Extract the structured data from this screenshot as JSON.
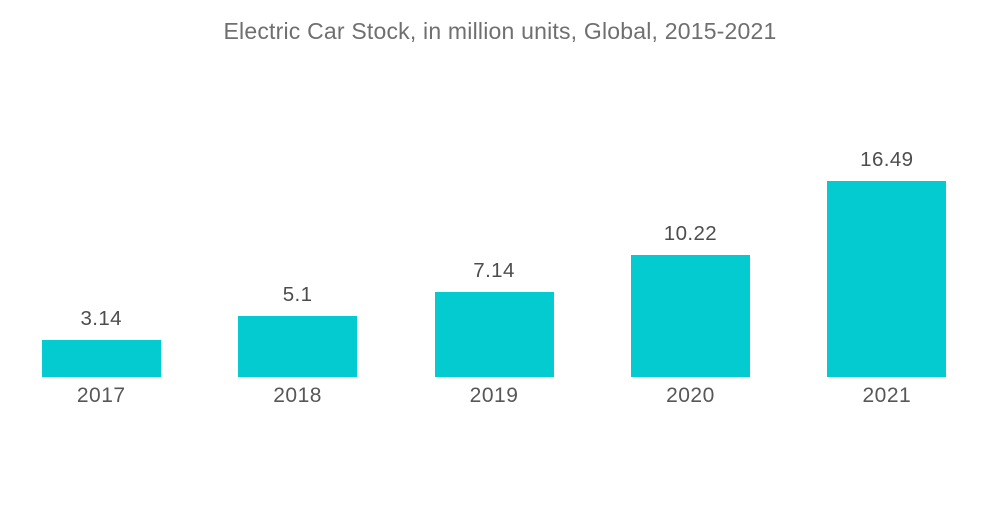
{
  "chart_data": {
    "type": "bar",
    "title": "Electric Car Stock, in million units, Global, 2015-2021",
    "categories": [
      "2017",
      "2018",
      "2019",
      "2020",
      "2021"
    ],
    "values": [
      3.14,
      5.1,
      7.14,
      10.22,
      16.49
    ],
    "value_labels": [
      "3.14",
      "5.1",
      "7.14",
      "10.22",
      "16.49"
    ],
    "xlabel": "",
    "ylabel": "",
    "ylim": [
      0,
      16.49
    ],
    "grid": false,
    "legend": false,
    "axes_visible": false,
    "bar_color": "#03cbd0",
    "title_color": "#6f6f6f",
    "label_color": "#4d4d4d",
    "tick_color": "#575757",
    "background_color": "#ffffff"
  }
}
